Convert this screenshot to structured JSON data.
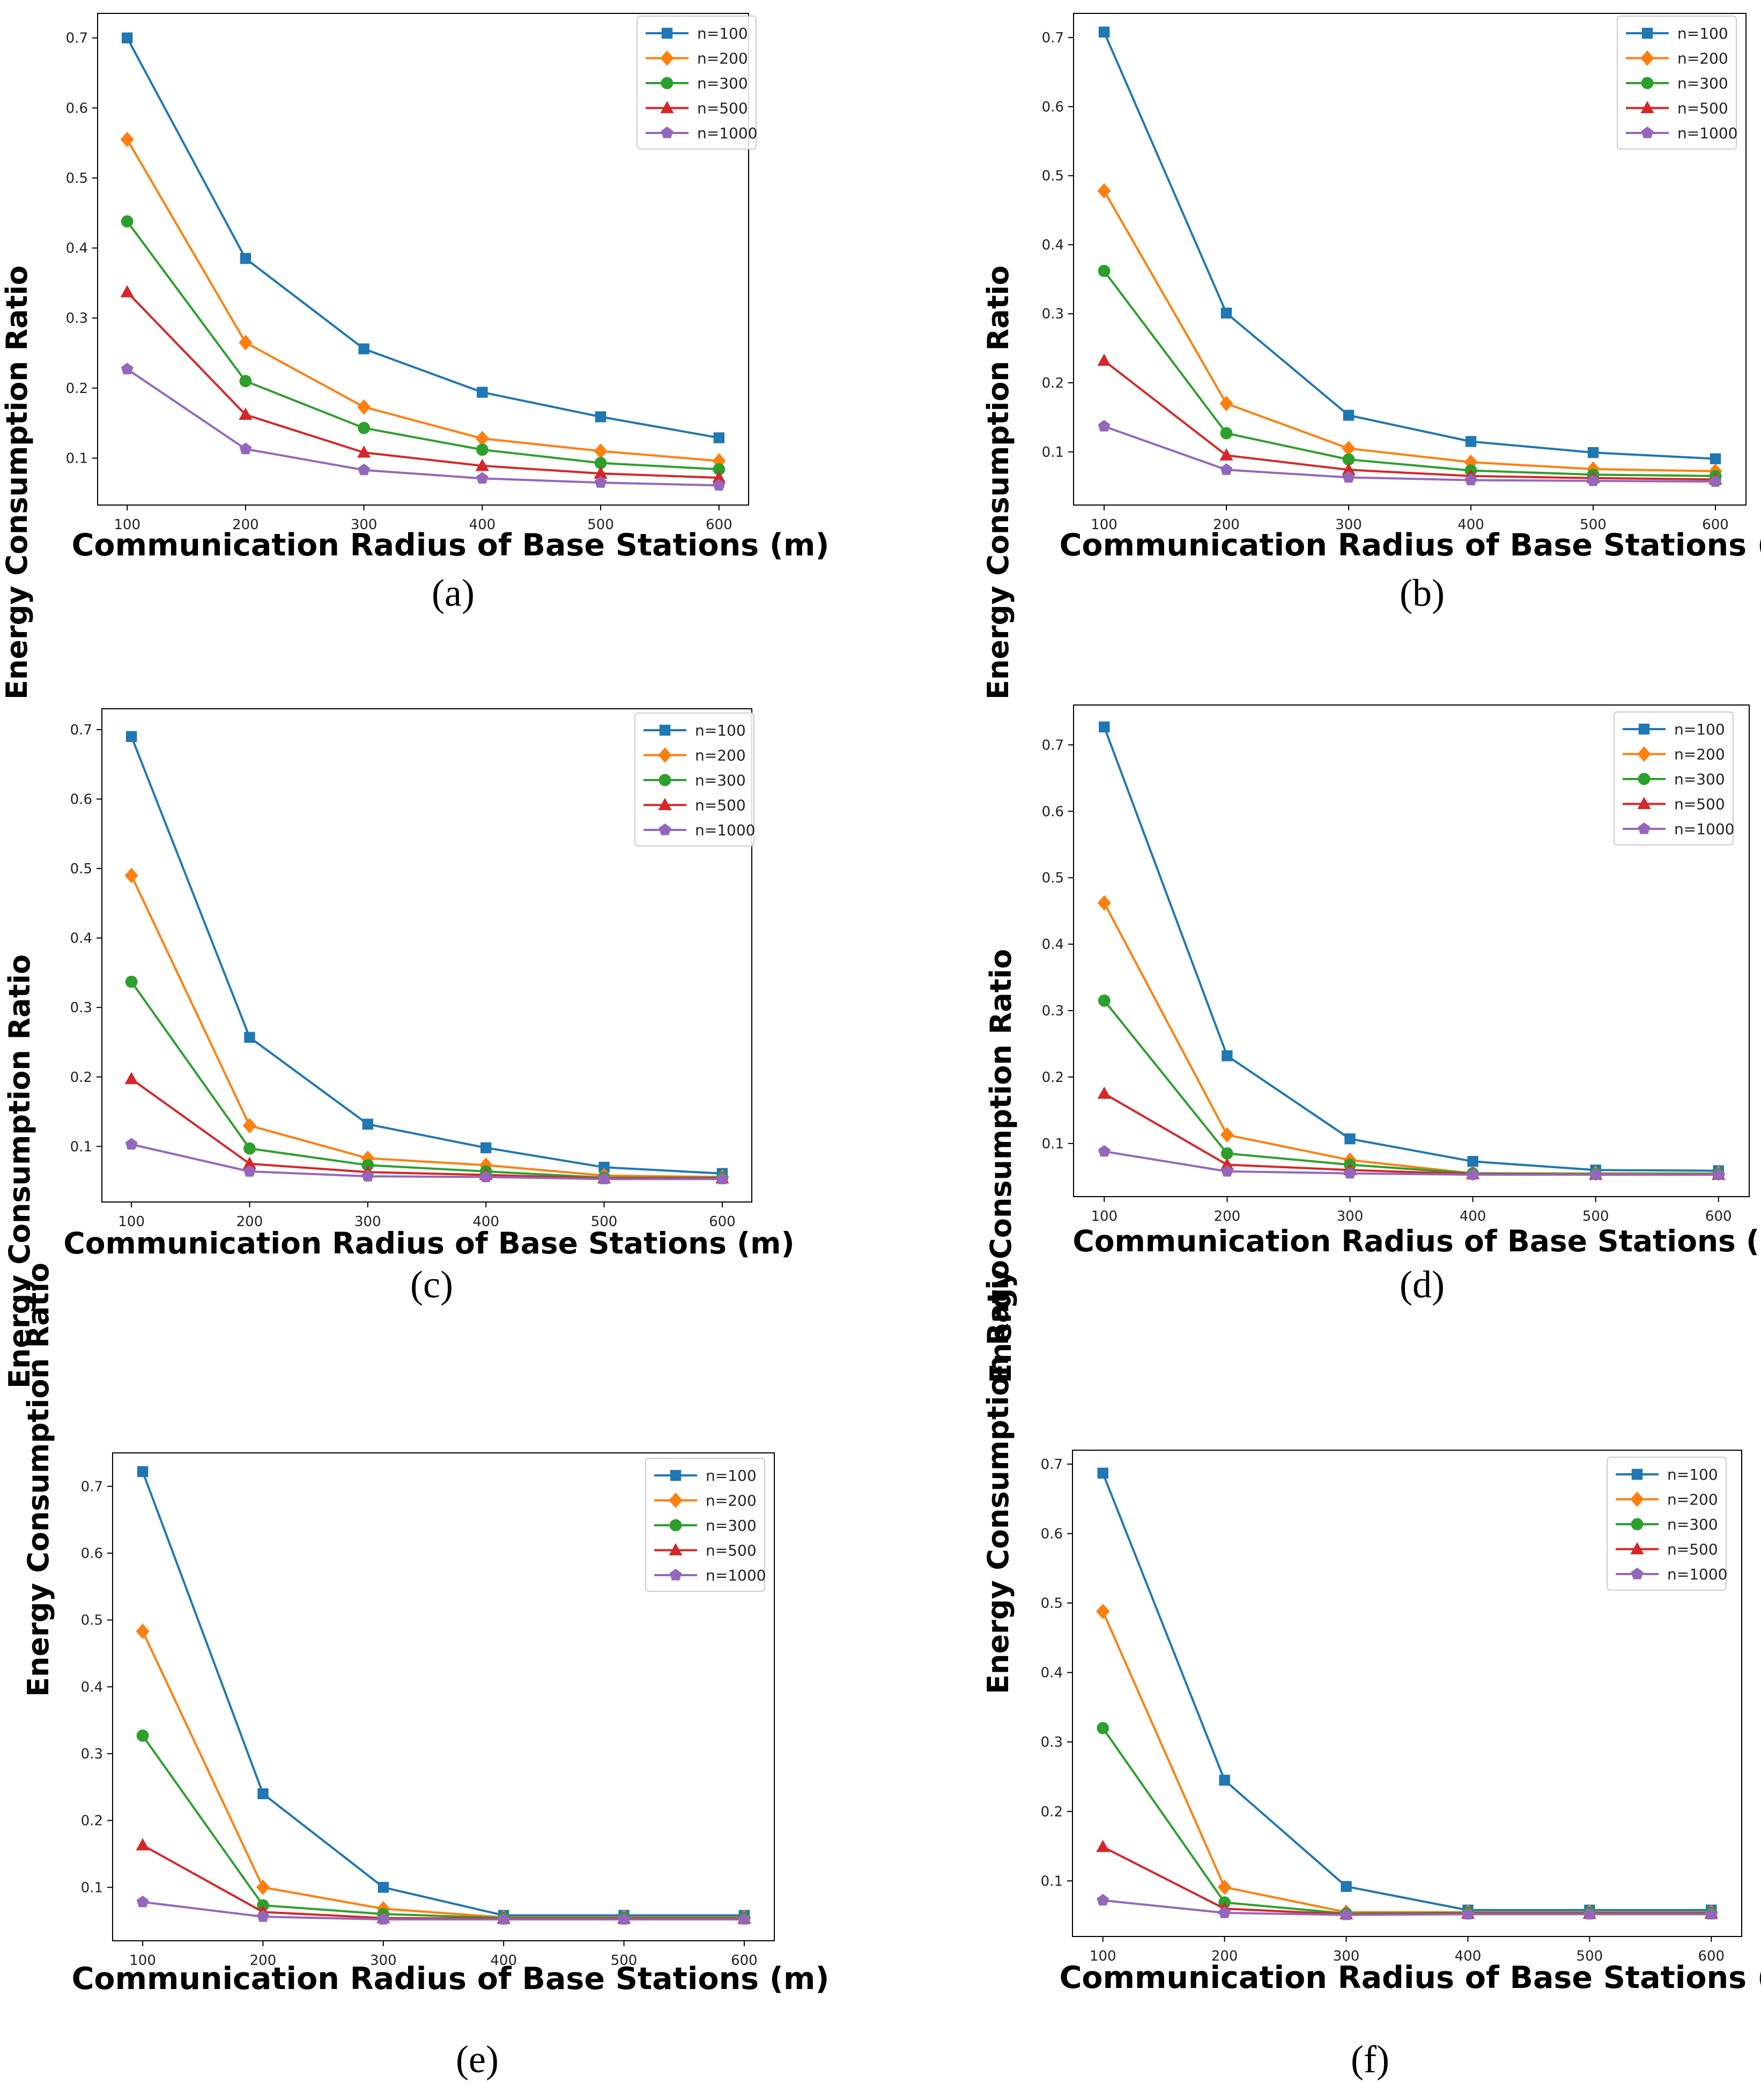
{
  "figure": {
    "series_names": [
      "n=100",
      "n=200",
      "n=300",
      "n=500",
      "n=1000"
    ],
    "series_colors": [
      "#1f77b4",
      "#ff7f0e",
      "#2ca02c",
      "#d62728",
      "#9467bd"
    ],
    "series_markers": [
      "square",
      "diamond",
      "circle",
      "triangle",
      "pentagon"
    ]
  },
  "chart_data": [
    {
      "type": "line",
      "caption": "(a)",
      "xlabel": "Communication Radius of Base Stations (m)",
      "ylabel": "Energy Consumption Ratio",
      "x": [
        100,
        200,
        300,
        400,
        500,
        600
      ],
      "xticks": [
        "100",
        "200",
        "300",
        "400",
        "500",
        "600"
      ],
      "yticks": [
        0.1,
        0.2,
        0.3,
        0.4,
        0.5,
        0.6,
        0.7
      ],
      "xlim": [
        75,
        625
      ],
      "ylim": [
        0.033,
        0.735
      ],
      "legend": "top-right",
      "series": [
        {
          "name": "n=100",
          "values": [
            0.7,
            0.385,
            0.256,
            0.194,
            0.159,
            0.129
          ]
        },
        {
          "name": "n=200",
          "values": [
            0.555,
            0.265,
            0.173,
            0.128,
            0.11,
            0.096
          ]
        },
        {
          "name": "n=300",
          "values": [
            0.438,
            0.21,
            0.143,
            0.112,
            0.093,
            0.084
          ]
        },
        {
          "name": "n=500",
          "values": [
            0.337,
            0.162,
            0.108,
            0.089,
            0.078,
            0.072
          ]
        },
        {
          "name": "n=1000",
          "values": [
            0.227,
            0.113,
            0.083,
            0.071,
            0.065,
            0.061
          ]
        }
      ]
    },
    {
      "type": "line",
      "caption": "(b)",
      "xlabel": "Communication Radius of Base Stations (m)",
      "ylabel": "Energy Consumption Ratio",
      "x": [
        100,
        200,
        300,
        400,
        500,
        600
      ],
      "xticks": [
        "100",
        "200",
        "300",
        "400",
        "500",
        "600"
      ],
      "yticks": [
        0.1,
        0.2,
        0.3,
        0.4,
        0.5,
        0.6,
        0.7
      ],
      "xlim": [
        75,
        625
      ],
      "ylim": [
        0.023,
        0.735
      ],
      "legend": "top-right",
      "series": [
        {
          "name": "n=100",
          "values": [
            0.708,
            0.301,
            0.153,
            0.115,
            0.099,
            0.09
          ]
        },
        {
          "name": "n=200",
          "values": [
            0.478,
            0.17,
            0.105,
            0.085,
            0.075,
            0.072
          ]
        },
        {
          "name": "n=300",
          "values": [
            0.362,
            0.127,
            0.089,
            0.073,
            0.067,
            0.065
          ]
        },
        {
          "name": "n=500",
          "values": [
            0.232,
            0.095,
            0.074,
            0.065,
            0.062,
            0.06
          ]
        },
        {
          "name": "n=1000",
          "values": [
            0.137,
            0.074,
            0.063,
            0.059,
            0.058,
            0.057
          ]
        }
      ]
    },
    {
      "type": "line",
      "caption": "(c)",
      "xlabel": "Communication Radius of Base Stations (m)",
      "ylabel": "Energy Consumption Ratio",
      "x": [
        100,
        200,
        300,
        400,
        500,
        600
      ],
      "xticks": [
        "100",
        "200",
        "300",
        "400",
        "500",
        "600"
      ],
      "yticks": [
        0.1,
        0.2,
        0.3,
        0.4,
        0.5,
        0.6,
        0.7
      ],
      "xlim": [
        75,
        625
      ],
      "ylim": [
        0.02,
        0.73
      ],
      "legend": "top-right",
      "series": [
        {
          "name": "n=100",
          "values": [
            0.69,
            0.257,
            0.132,
            0.098,
            0.07,
            0.061
          ]
        },
        {
          "name": "n=200",
          "values": [
            0.49,
            0.13,
            0.083,
            0.073,
            0.058,
            0.056
          ]
        },
        {
          "name": "n=300",
          "values": [
            0.337,
            0.097,
            0.073,
            0.064,
            0.055,
            0.055
          ]
        },
        {
          "name": "n=500",
          "values": [
            0.197,
            0.075,
            0.063,
            0.059,
            0.054,
            0.054
          ]
        },
        {
          "name": "n=1000",
          "values": [
            0.103,
            0.064,
            0.057,
            0.056,
            0.053,
            0.053
          ]
        }
      ]
    },
    {
      "type": "line",
      "caption": "(d)",
      "xlabel": "Communication Radius of Base Stations (m)",
      "ylabel": "Energy Consumption Ratio",
      "x": [
        100,
        200,
        300,
        400,
        500,
        600
      ],
      "xticks": [
        "100",
        "200",
        "300",
        "400",
        "500",
        "600"
      ],
      "yticks": [
        0.1,
        0.2,
        0.3,
        0.4,
        0.5,
        0.6,
        0.7
      ],
      "xlim": [
        75,
        625
      ],
      "ylim": [
        0.02,
        0.76
      ],
      "legend": "top-right",
      "series": [
        {
          "name": "n=100",
          "values": [
            0.727,
            0.232,
            0.107,
            0.073,
            0.06,
            0.059
          ]
        },
        {
          "name": "n=200",
          "values": [
            0.462,
            0.113,
            0.075,
            0.055,
            0.055,
            0.055
          ]
        },
        {
          "name": "n=300",
          "values": [
            0.315,
            0.085,
            0.068,
            0.055,
            0.054,
            0.054
          ]
        },
        {
          "name": "n=500",
          "values": [
            0.175,
            0.068,
            0.06,
            0.054,
            0.053,
            0.053
          ]
        },
        {
          "name": "n=1000",
          "values": [
            0.088,
            0.058,
            0.055,
            0.053,
            0.053,
            0.053
          ]
        }
      ]
    },
    {
      "type": "line",
      "caption": "(e)",
      "xlabel": "Communication Radius of Base Stations (m)",
      "ylabel": "Energy Consumption Ratio",
      "x": [
        100,
        200,
        300,
        400,
        500,
        600
      ],
      "xticks": [
        "100",
        "200",
        "300",
        "400",
        "500",
        "600"
      ],
      "yticks": [
        0.1,
        0.2,
        0.3,
        0.4,
        0.5,
        0.6,
        0.7
      ],
      "xlim": [
        75,
        625
      ],
      "ylim": [
        0.02,
        0.75
      ],
      "legend": "top-right",
      "series": [
        {
          "name": "n=100",
          "values": [
            0.722,
            0.24,
            0.1,
            0.058,
            0.058,
            0.058
          ]
        },
        {
          "name": "n=200",
          "values": [
            0.483,
            0.1,
            0.068,
            0.055,
            0.055,
            0.055
          ]
        },
        {
          "name": "n=300",
          "values": [
            0.327,
            0.073,
            0.06,
            0.054,
            0.054,
            0.054
          ]
        },
        {
          "name": "n=500",
          "values": [
            0.163,
            0.063,
            0.054,
            0.053,
            0.053,
            0.053
          ]
        },
        {
          "name": "n=1000",
          "values": [
            0.078,
            0.056,
            0.052,
            0.052,
            0.052,
            0.052
          ]
        }
      ]
    },
    {
      "type": "line",
      "caption": "(f)",
      "xlabel": "Communication Radius of Base Stations (m)",
      "ylabel": "Energy Consumption Ratio",
      "x": [
        100,
        200,
        300,
        400,
        500,
        600
      ],
      "xticks": [
        "100",
        "200",
        "300",
        "400",
        "500",
        "600"
      ],
      "yticks": [
        0.1,
        0.2,
        0.3,
        0.4,
        0.5,
        0.6,
        0.7
      ],
      "xlim": [
        75,
        625
      ],
      "ylim": [
        0.02,
        0.72
      ],
      "legend": "top-right",
      "series": [
        {
          "name": "n=100",
          "values": [
            0.687,
            0.245,
            0.092,
            0.058,
            0.058,
            0.058
          ]
        },
        {
          "name": "n=200",
          "values": [
            0.488,
            0.091,
            0.055,
            0.055,
            0.055,
            0.055
          ]
        },
        {
          "name": "n=300",
          "values": [
            0.32,
            0.069,
            0.053,
            0.054,
            0.054,
            0.054
          ]
        },
        {
          "name": "n=500",
          "values": [
            0.149,
            0.06,
            0.052,
            0.053,
            0.053,
            0.053
          ]
        },
        {
          "name": "n=1000",
          "values": [
            0.072,
            0.054,
            0.051,
            0.052,
            0.052,
            0.052
          ]
        }
      ]
    }
  ]
}
